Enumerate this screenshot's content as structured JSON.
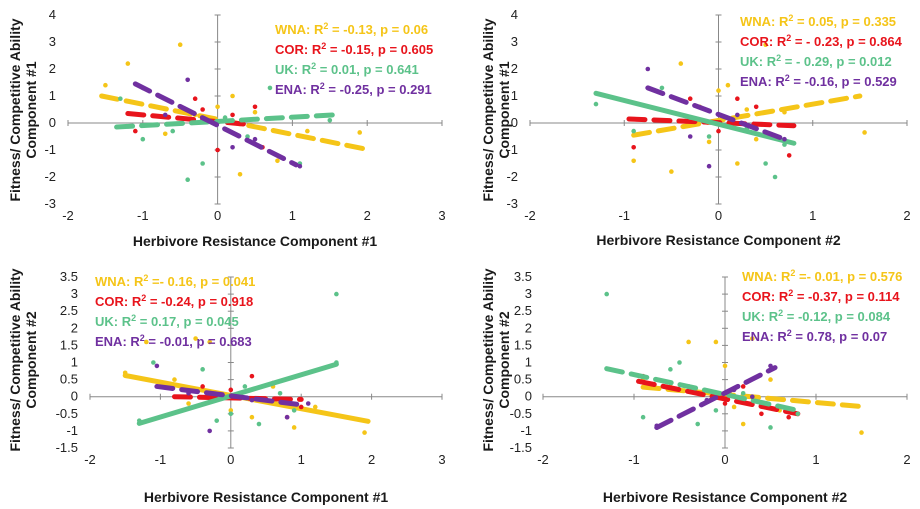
{
  "colors": {
    "WNA": "#f5c518",
    "COR": "#e8141c",
    "UK": "#5cc28a",
    "ENA": "#7030a0"
  },
  "chart_data": [
    {
      "type": "scatter",
      "xlabel": "Herbivore Resistance Component #1",
      "ylabel": [
        "Fitness/ Competitive Ability",
        "Component #1"
      ],
      "xlim": [
        -2,
        3
      ],
      "ylim": [
        -3,
        4
      ],
      "xticks": [
        -2,
        -1,
        0,
        1,
        2,
        3
      ],
      "yticks": [
        -3,
        -2,
        -1,
        0,
        1,
        2,
        3,
        4
      ],
      "series": [
        {
          "name": "WNA",
          "stat_prefix": "WNA: R",
          "stat_suffix": " = -0.13, p = 0.06",
          "line": {
            "x": [
              -1.55,
              1.95
            ],
            "y": [
              1.0,
              -0.95
            ]
          },
          "points": [
            [
              -1.5,
              1.4
            ],
            [
              -1.2,
              2.2
            ],
            [
              -0.5,
              2.9
            ],
            [
              -0.3,
              0.3
            ],
            [
              0.0,
              0.6
            ],
            [
              0.2,
              1.0
            ],
            [
              0.5,
              0.4
            ],
            [
              0.8,
              -1.4
            ],
            [
              1.2,
              -0.3
            ],
            [
              1.9,
              -0.35
            ],
            [
              -0.7,
              -0.4
            ],
            [
              0.3,
              -1.9
            ]
          ]
        },
        {
          "name": "COR",
          "stat_prefix": "COR: R",
          "stat_suffix": " = -0.15, p = 0.605",
          "line": {
            "x": [
              -1.2,
              0.4
            ],
            "y": [
              0.35,
              -0.05
            ]
          },
          "points": [
            [
              -1.1,
              -0.3
            ],
            [
              -0.3,
              0.9
            ],
            [
              -0.2,
              0.5
            ],
            [
              0.0,
              -1.0
            ],
            [
              0.2,
              0.3
            ],
            [
              0.5,
              0.6
            ],
            [
              0.6,
              -0.9
            ]
          ]
        },
        {
          "name": "UK",
          "stat_prefix": "UK: R",
          "stat_suffix": " = 0.01, p = 0.641",
          "line": {
            "x": [
              -1.35,
              1.55
            ],
            "y": [
              -0.15,
              0.3
            ]
          },
          "points": [
            [
              -1.0,
              -0.6
            ],
            [
              -0.6,
              -0.3
            ],
            [
              -0.4,
              -2.1
            ],
            [
              -0.2,
              -1.5
            ],
            [
              0.1,
              0.2
            ],
            [
              0.4,
              -0.5
            ],
            [
              0.7,
              1.3
            ],
            [
              1.1,
              -1.5
            ],
            [
              1.5,
              0.1
            ],
            [
              -1.3,
              0.9
            ]
          ]
        },
        {
          "name": "ENA",
          "stat_prefix": "ENA: R",
          "stat_suffix": " = -0.25, p = 0.291",
          "line": {
            "x": [
              -1.1,
              1.05
            ],
            "y": [
              1.45,
              -1.55
            ]
          },
          "points": [
            [
              -1.0,
              1.3
            ],
            [
              -0.4,
              1.6
            ],
            [
              0.2,
              -0.9
            ],
            [
              0.5,
              -0.6
            ],
            [
              1.1,
              -1.6
            ],
            [
              -0.7,
              0.3
            ]
          ]
        }
      ]
    },
    {
      "type": "scatter",
      "xlabel": "Herbivore Resistance Component #2",
      "ylabel": [
        "Fitness/ Competitive Ability",
        "Component #1"
      ],
      "xlim": [
        -2,
        2
      ],
      "ylim": [
        -3,
        4
      ],
      "xticks": [
        -2,
        -1,
        0,
        1,
        2
      ],
      "yticks": [
        -3,
        -2,
        -1,
        0,
        1,
        2,
        3,
        4
      ],
      "series": [
        {
          "name": "WNA",
          "stat_prefix": "WNA: R",
          "stat_suffix": " = 0.05, p = 0.335",
          "line": {
            "x": [
              -0.9,
              1.5
            ],
            "y": [
              -0.45,
              1.0
            ]
          },
          "points": [
            [
              -0.9,
              -1.4
            ],
            [
              -0.5,
              -1.8
            ],
            [
              -0.4,
              2.2
            ],
            [
              -0.1,
              -0.7
            ],
            [
              0.0,
              1.2
            ],
            [
              0.1,
              1.4
            ],
            [
              0.2,
              -1.5
            ],
            [
              0.3,
              0.5
            ],
            [
              0.5,
              2.9
            ],
            [
              0.7,
              0.4
            ],
            [
              1.55,
              -0.35
            ],
            [
              -0.2,
              0.6
            ],
            [
              0.4,
              -0.6
            ]
          ]
        },
        {
          "name": "COR",
          "stat_prefix": "COR: R",
          "stat_suffix": " = - 0.23, p = 0.864",
          "line": {
            "x": [
              -0.95,
              0.8
            ],
            "y": [
              0.15,
              -0.1
            ]
          },
          "points": [
            [
              -0.9,
              -0.9
            ],
            [
              -0.3,
              0.9
            ],
            [
              0.0,
              -0.3
            ],
            [
              0.2,
              0.9
            ],
            [
              0.4,
              0.6
            ],
            [
              0.6,
              -0.5
            ],
            [
              0.75,
              -1.2
            ]
          ]
        },
        {
          "name": "UK",
          "stat_prefix": "UK: R",
          "stat_suffix": " = - 0.29, p = 0.012",
          "line": {
            "x": [
              -1.3,
              0.8
            ],
            "y": [
              1.1,
              -0.75
            ]
          },
          "points": [
            [
              -1.3,
              0.7
            ],
            [
              -0.6,
              1.3
            ],
            [
              -0.3,
              0.2
            ],
            [
              -0.1,
              -0.5
            ],
            [
              0.3,
              -0.2
            ],
            [
              0.5,
              -1.5
            ],
            [
              0.6,
              -2.0
            ],
            [
              0.7,
              -0.8
            ],
            [
              -0.9,
              -0.3
            ]
          ]
        },
        {
          "name": "ENA",
          "stat_prefix": "ENA: R",
          "stat_suffix": " = -0.16, p = 0.529",
          "line": {
            "x": [
              -0.75,
              0.7
            ],
            "y": [
              1.3,
              -0.6
            ]
          },
          "points": [
            [
              -0.75,
              2.0
            ],
            [
              -0.3,
              -0.5
            ],
            [
              -0.1,
              -1.6
            ],
            [
              0.2,
              0.3
            ],
            [
              0.7,
              -0.6
            ]
          ]
        }
      ]
    },
    {
      "type": "scatter",
      "xlabel": "Herbivore Resistance Component #1",
      "ylabel": [
        "Fitness/ Competitive Ability",
        "Component #2"
      ],
      "xlim": [
        -2,
        3
      ],
      "ylim": [
        -1.5,
        3.5
      ],
      "xticks": [
        -2,
        -1,
        0,
        1,
        2,
        3
      ],
      "yticks": [
        -1.5,
        -1,
        -0.5,
        0,
        0.5,
        1,
        1.5,
        2,
        2.5,
        3,
        3.5
      ],
      "series": [
        {
          "name": "WNA",
          "stat_prefix": "WNA: R",
          "stat_suffix": " =- 0.16, p = 0.041",
          "line": {
            "x": [
              -1.5,
              1.95
            ],
            "y": [
              0.62,
              -0.72
            ]
          },
          "points": [
            [
              -1.5,
              0.7
            ],
            [
              -1.2,
              1.6
            ],
            [
              -0.8,
              0.5
            ],
            [
              -0.5,
              1.7
            ],
            [
              -0.3,
              1.6
            ],
            [
              0.0,
              -0.4
            ],
            [
              0.3,
              -0.6
            ],
            [
              0.6,
              0.3
            ],
            [
              0.9,
              -0.9
            ],
            [
              1.9,
              -1.05
            ],
            [
              -0.6,
              -0.2
            ],
            [
              1.2,
              -0.3
            ]
          ]
        },
        {
          "name": "COR",
          "stat_prefix": "COR: R",
          "stat_suffix": " = -0.24, p = 0.918",
          "line": {
            "x": [
              -0.8,
              1.0
            ],
            "y": [
              0.0,
              -0.08
            ]
          },
          "points": [
            [
              -0.4,
              0.3
            ],
            [
              0.0,
              0.2
            ],
            [
              0.3,
              0.6
            ],
            [
              0.6,
              0.4
            ],
            [
              0.8,
              -0.6
            ],
            [
              1.0,
              -0.3
            ]
          ]
        },
        {
          "name": "UK",
          "stat_prefix": "UK: R",
          "stat_suffix": " = 0.17, p = 0.045",
          "line": {
            "x": [
              -1.3,
              1.5
            ],
            "y": [
              -0.78,
              0.95
            ]
          },
          "points": [
            [
              -1.3,
              -0.7
            ],
            [
              -1.1,
              1.0
            ],
            [
              -0.4,
              0.8
            ],
            [
              -0.2,
              -0.7
            ],
            [
              0.0,
              -0.5
            ],
            [
              0.2,
              0.3
            ],
            [
              0.4,
              -0.8
            ],
            [
              0.7,
              0.1
            ],
            [
              1.5,
              3.0
            ],
            [
              1.5,
              1.0
            ],
            [
              0.9,
              -0.4
            ]
          ]
        },
        {
          "name": "ENA",
          "stat_prefix": "ENA: R",
          "stat_suffix": " = -0.01, p = 0.683",
          "line": {
            "x": [
              -1.05,
              1.05
            ],
            "y": [
              0.3,
              -0.25
            ]
          },
          "points": [
            [
              -1.05,
              0.9
            ],
            [
              -0.3,
              -1.0
            ],
            [
              0.3,
              -0.1
            ],
            [
              0.8,
              -0.6
            ],
            [
              1.1,
              -0.2
            ],
            [
              -0.6,
              0.1
            ]
          ]
        }
      ]
    },
    {
      "type": "scatter",
      "xlabel": "Herbivore Resistance Component #2",
      "ylabel": [
        "Fitness/ Competitive Ability",
        "Component #2"
      ],
      "xlim": [
        -2,
        2
      ],
      "ylim": [
        -1.5,
        3.5
      ],
      "xticks": [
        -2,
        -1,
        0,
        1,
        2
      ],
      "yticks": [
        -1.5,
        -1,
        -0.5,
        0,
        0.5,
        1,
        1.5,
        2,
        2.5,
        3,
        3.5
      ],
      "series": [
        {
          "name": "WNA",
          "stat_prefix": "WNA: R",
          "stat_suffix": " =- 0.01, p = 0.576",
          "line": {
            "x": [
              -0.9,
              1.55
            ],
            "y": [
              0.28,
              -0.3
            ]
          },
          "points": [
            [
              -0.9,
              0.5
            ],
            [
              -0.4,
              1.6
            ],
            [
              -0.1,
              1.6
            ],
            [
              0.1,
              -0.3
            ],
            [
              0.2,
              -0.8
            ],
            [
              0.3,
              1.7
            ],
            [
              0.5,
              0.5
            ],
            [
              0.6,
              -0.4
            ],
            [
              1.5,
              -1.05
            ],
            [
              -0.6,
              0.3
            ],
            [
              0.0,
              0.9
            ]
          ]
        },
        {
          "name": "COR",
          "stat_prefix": "COR: R",
          "stat_suffix": " = -0.37, p = 0.114",
          "line": {
            "x": [
              -0.95,
              0.8
            ],
            "y": [
              0.45,
              -0.5
            ]
          },
          "points": [
            [
              -0.9,
              0.6
            ],
            [
              -0.4,
              0.3
            ],
            [
              0.0,
              -0.2
            ],
            [
              0.2,
              0.3
            ],
            [
              0.4,
              -0.5
            ],
            [
              0.7,
              -0.6
            ]
          ]
        },
        {
          "name": "UK",
          "stat_prefix": "UK: R",
          "stat_suffix": " = -0.12, p = 0.084",
          "line": {
            "x": [
              -1.3,
              0.8
            ],
            "y": [
              0.82,
              -0.4
            ]
          },
          "points": [
            [
              -1.3,
              3.0
            ],
            [
              -0.9,
              -0.6
            ],
            [
              -0.5,
              1.0
            ],
            [
              -0.3,
              -0.8
            ],
            [
              -0.1,
              -0.4
            ],
            [
              0.2,
              0.1
            ],
            [
              0.5,
              -0.9
            ],
            [
              0.8,
              -0.5
            ],
            [
              -0.6,
              0.8
            ]
          ]
        },
        {
          "name": "ENA",
          "stat_prefix": "ENA: R",
          "stat_suffix": " = 0.78, p = 0.07",
          "line": {
            "x": [
              -0.75,
              0.55
            ],
            "y": [
              -0.9,
              0.85
            ]
          },
          "points": [
            [
              -0.75,
              -0.85
            ],
            [
              -0.2,
              -0.1
            ],
            [
              0.1,
              0.2
            ],
            [
              0.5,
              0.9
            ],
            [
              0.3,
              0.0
            ]
          ]
        }
      ]
    }
  ]
}
